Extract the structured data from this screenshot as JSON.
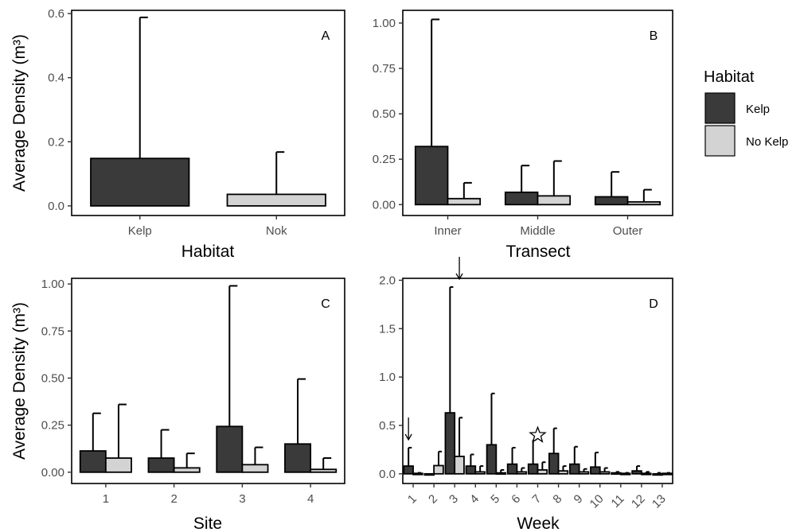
{
  "y_axis_title": "Average Density (m³)",
  "legend": {
    "title": "Habitat",
    "entries": [
      {
        "label": "Kelp",
        "color": "#3a3a3a"
      },
      {
        "label": "No Kelp",
        "color": "#d3d3d3"
      }
    ]
  },
  "colors": {
    "kelp": "#3a3a3a",
    "no_kelp": "#d3d3d3",
    "axis": "#000000"
  },
  "chart_data": [
    {
      "id": "A",
      "type": "bar",
      "tag": "A",
      "xlabel": "Habitat",
      "ylabel": "Average Density (m³)",
      "categories": [
        "Kelp",
        "Nok"
      ],
      "ylim": [
        -0.03,
        0.61
      ],
      "yticks": [
        0.0,
        0.2,
        0.4,
        0.6
      ],
      "ytick_labels": [
        "0.0",
        "0.2",
        "0.4",
        "0.6"
      ],
      "grid": false,
      "series": [
        {
          "key": "kelp",
          "values": [
            0.148,
            null
          ],
          "err_top": [
            0.588,
            null
          ]
        },
        {
          "key": "no_kelp",
          "values": [
            null,
            0.036
          ],
          "err_top": [
            null,
            0.168
          ]
        }
      ]
    },
    {
      "id": "B",
      "type": "bar",
      "tag": "B",
      "xlabel": "Transect",
      "ylabel": "",
      "categories": [
        "Inner",
        "Middle",
        "Outer"
      ],
      "ylim": [
        -0.06,
        1.07
      ],
      "yticks": [
        0.0,
        0.25,
        0.5,
        0.75,
        1.0
      ],
      "ytick_labels": [
        "0.00",
        "0.25",
        "0.50",
        "0.75",
        "1.00"
      ],
      "grid": false,
      "series": [
        {
          "key": "kelp",
          "values": [
            0.32,
            0.068,
            0.043
          ],
          "err_top": [
            1.02,
            0.215,
            0.18
          ]
        },
        {
          "key": "no_kelp",
          "values": [
            0.033,
            0.048,
            0.015
          ],
          "err_top": [
            0.12,
            0.24,
            0.082
          ]
        }
      ]
    },
    {
      "id": "C",
      "type": "bar",
      "tag": "C",
      "xlabel": "Site",
      "ylabel": "Average Density (m³)",
      "categories": [
        "1",
        "2",
        "3",
        "4"
      ],
      "ylim": [
        -0.06,
        1.03
      ],
      "yticks": [
        0.0,
        0.25,
        0.5,
        0.75,
        1.0
      ],
      "ytick_labels": [
        "0.00",
        "0.25",
        "0.50",
        "0.75",
        "1.00"
      ],
      "grid": false,
      "series": [
        {
          "key": "kelp",
          "values": [
            0.113,
            0.075,
            0.243,
            0.15
          ],
          "err_top": [
            0.313,
            0.225,
            0.99,
            0.495
          ]
        },
        {
          "key": "no_kelp",
          "values": [
            0.075,
            0.023,
            0.04,
            0.015
          ],
          "err_top": [
            0.36,
            0.1,
            0.132,
            0.075
          ]
        }
      ]
    },
    {
      "id": "D",
      "type": "bar",
      "tag": "D",
      "xlabel": "Week",
      "ylabel": "",
      "categories": [
        "1",
        "2",
        "3",
        "4",
        "5",
        "6",
        "7",
        "8",
        "9",
        "10",
        "11",
        "12",
        "13"
      ],
      "ylim": [
        -0.1,
        2.02
      ],
      "yticks": [
        0.0,
        0.5,
        1.0,
        1.5,
        2.0
      ],
      "ytick_labels": [
        "0.0",
        "0.5",
        "1.0",
        "1.5",
        "2.0"
      ],
      "grid": false,
      "series": [
        {
          "key": "kelp",
          "values": [
            0.08,
            0.0,
            0.63,
            0.08,
            0.3,
            0.1,
            0.1,
            0.21,
            0.1,
            0.07,
            0.01,
            0.03,
            0.0
          ],
          "err_top": [
            0.27,
            0.0,
            1.93,
            0.2,
            0.83,
            0.27,
            0.35,
            0.47,
            0.28,
            0.22,
            0.02,
            0.08,
            0.01
          ]
        },
        {
          "key": "no_kelp",
          "values": [
            0.005,
            0.085,
            0.18,
            0.02,
            0.01,
            0.02,
            0.04,
            0.03,
            0.02,
            0.02,
            0.005,
            0.005,
            0.005
          ],
          "err_top": [
            0.01,
            0.23,
            0.58,
            0.08,
            0.04,
            0.06,
            0.12,
            0.08,
            0.05,
            0.06,
            0.01,
            0.02,
            0.01
          ]
        }
      ],
      "annotations": [
        {
          "type": "arrow",
          "week": "1"
        },
        {
          "type": "arrow",
          "week": "3"
        },
        {
          "type": "star",
          "week": "7"
        }
      ]
    }
  ]
}
